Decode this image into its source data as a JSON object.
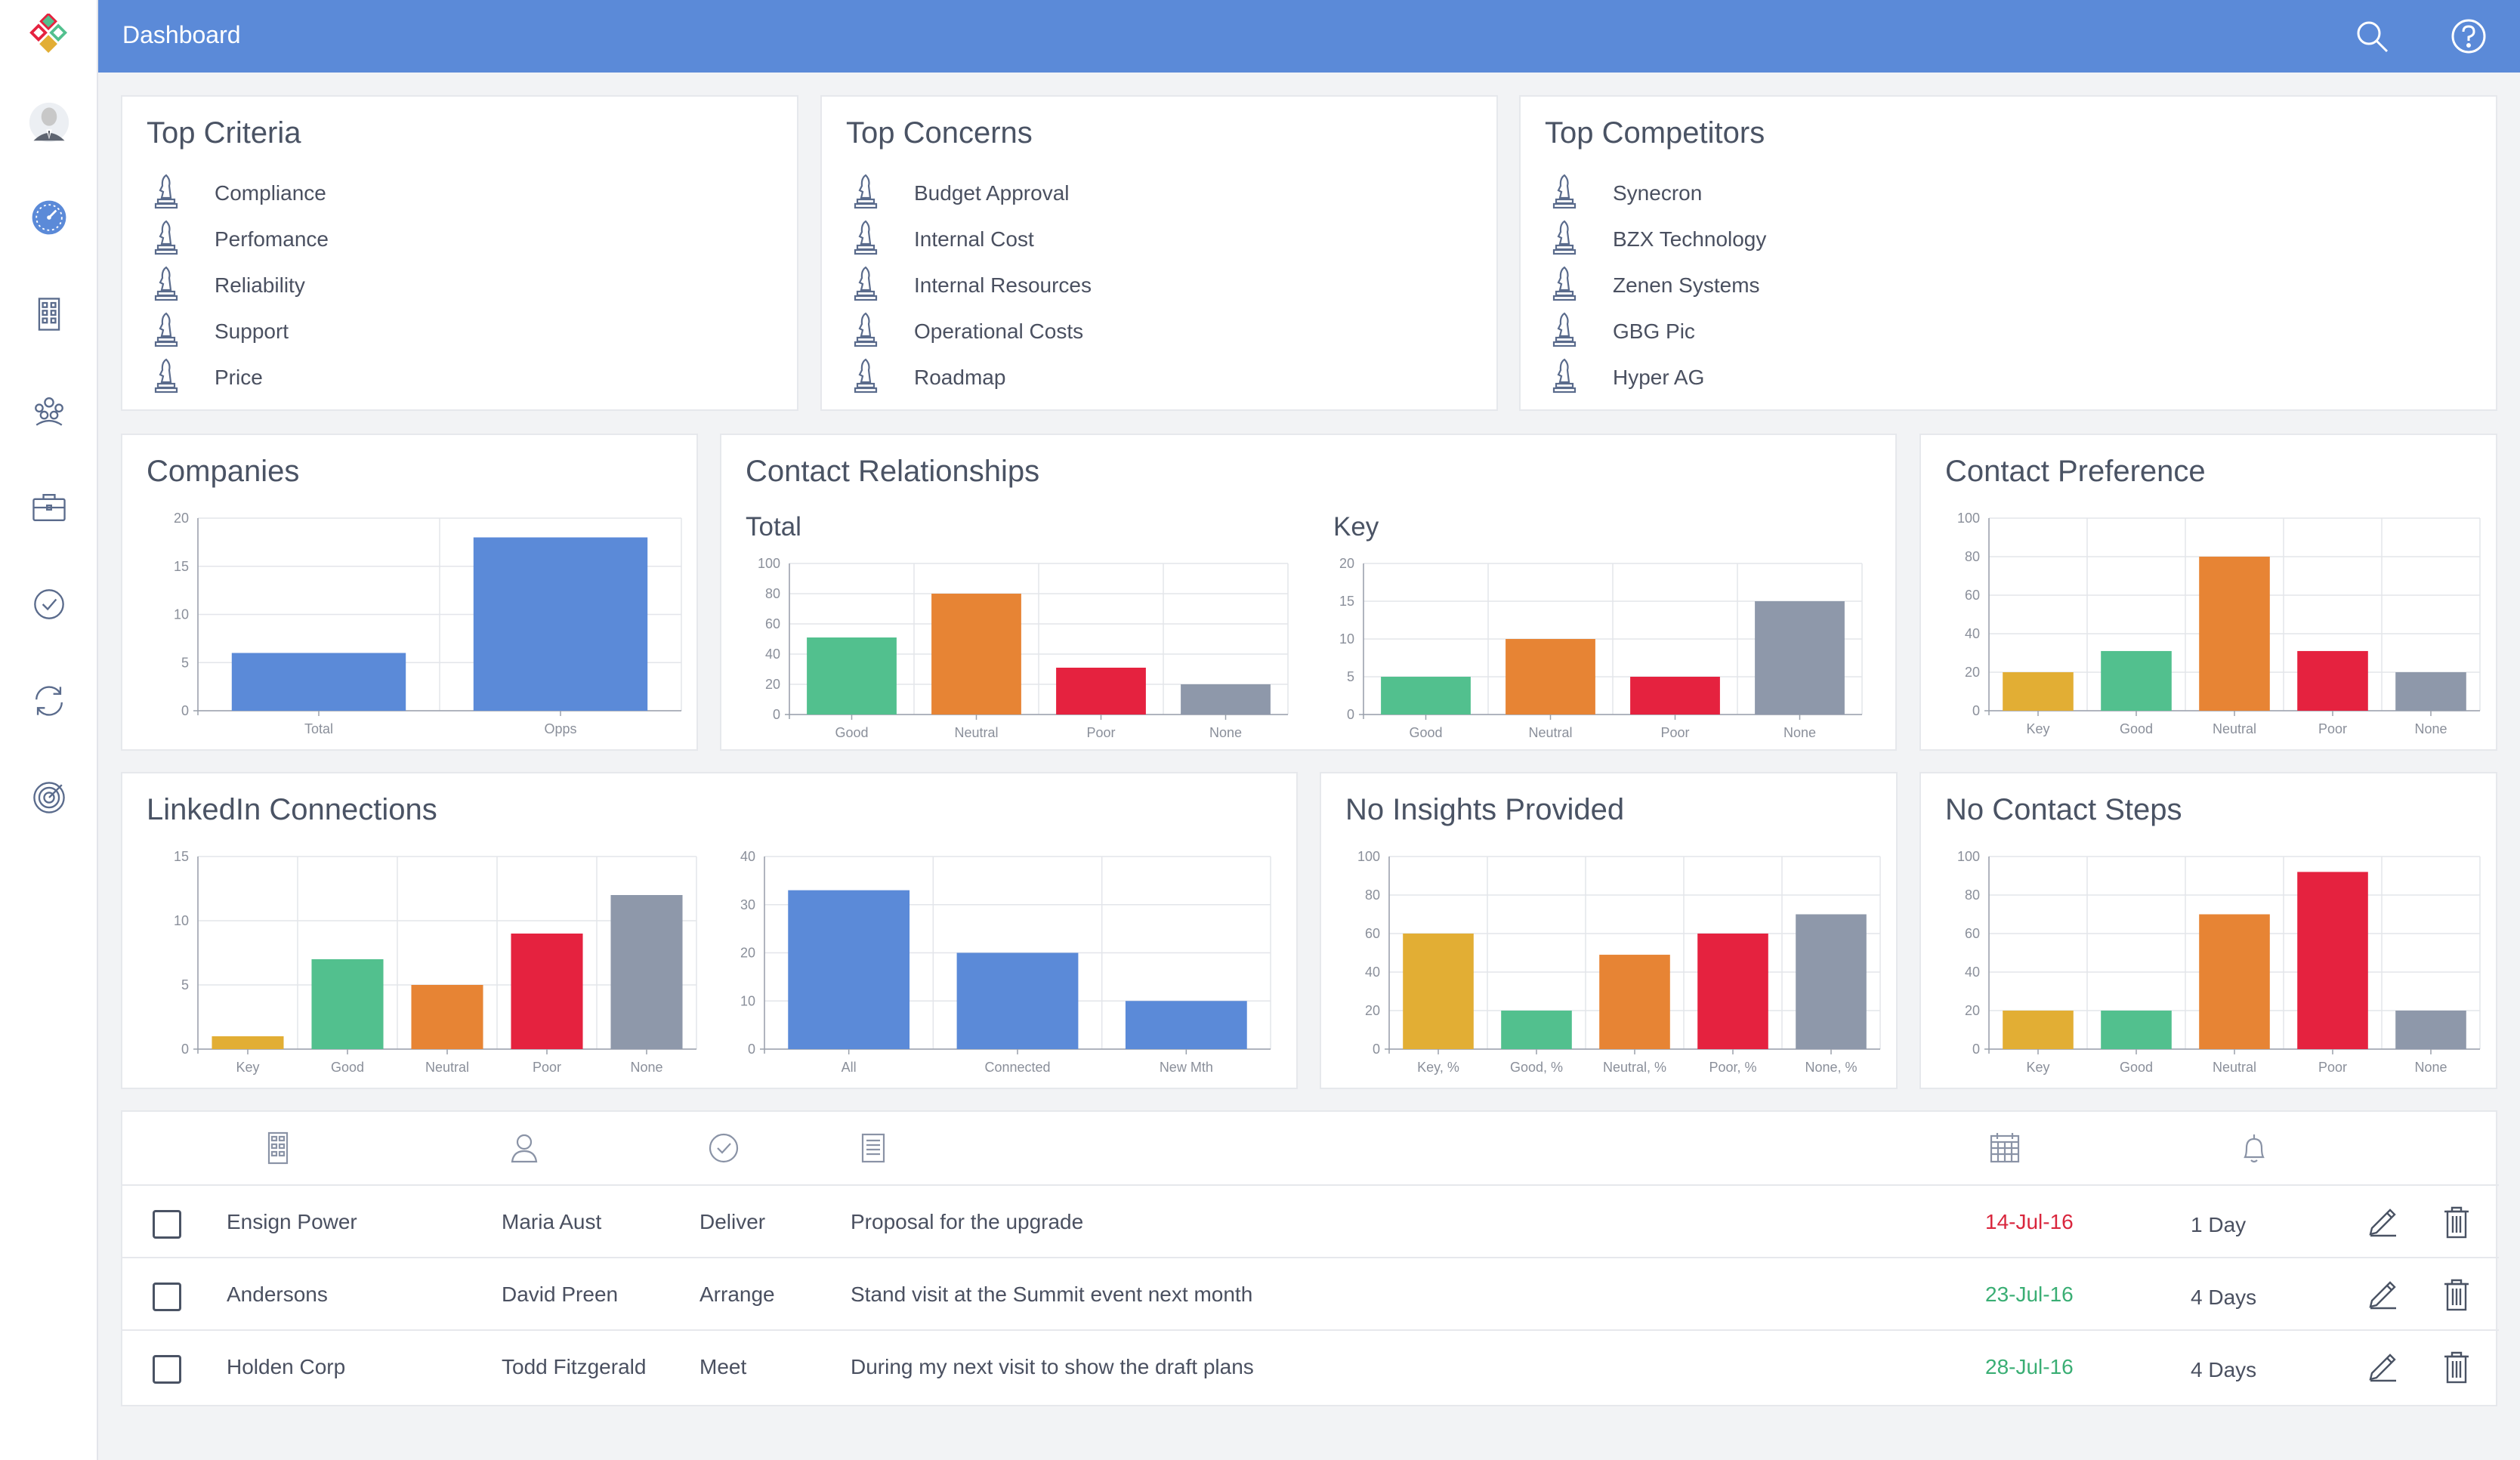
{
  "header": {
    "title": "Dashboard"
  },
  "icons": {
    "logo": "logo-icon",
    "avatar": "avatar",
    "dashboard": "gauge-icon",
    "companies": "building-icon",
    "contacts": "people-icon",
    "opportunities": "briefcase-icon",
    "tasks": "check-circle-icon",
    "sync": "sync-icon",
    "targets": "target-icon",
    "search": "search-icon",
    "help": "help-icon"
  },
  "colors": {
    "topbar": "#5b8ad8",
    "blue": "#5b8ad8",
    "green": "#52c08e",
    "orange": "#e78434",
    "red": "#e5223f",
    "gray": "#8e98aa",
    "yellow": "#e2ae34",
    "date_red": "#d9263d",
    "date_green": "#3aae74"
  },
  "top_criteria": {
    "title": "Top Criteria",
    "items": [
      "Compliance",
      "Perfomance",
      "Reliability",
      "Support",
      "Price"
    ]
  },
  "top_concerns": {
    "title": "Top Concerns",
    "items": [
      "Budget Approval",
      "Internal Cost",
      "Internal Resources",
      "Operational Costs",
      "Roadmap"
    ]
  },
  "top_competitors": {
    "title": "Top Competitors",
    "items": [
      "Synecron",
      "BZX Technology",
      "Zenen Systems",
      "GBG Pic",
      "Hyper AG"
    ]
  },
  "companies_card": {
    "title": "Companies"
  },
  "contact_relationships": {
    "title": "Contact Relationships",
    "total_label": "Total",
    "key_label": "Key"
  },
  "contact_preference": {
    "title": "Contact Preference"
  },
  "linkedin": {
    "title": "LinkedIn Connections"
  },
  "no_insights": {
    "title": "No Insights Provided"
  },
  "no_contact_steps": {
    "title": "No Contact Steps"
  },
  "chart_data": [
    {
      "id": "companies",
      "type": "bar",
      "categories": [
        "Total",
        "Opps"
      ],
      "values": [
        6,
        18
      ],
      "colors": [
        "#5b8ad8",
        "#5b8ad8"
      ],
      "ylim": [
        0,
        20
      ],
      "yticks": [
        0,
        5,
        10,
        15,
        20
      ]
    },
    {
      "id": "rel_total",
      "type": "bar",
      "categories": [
        "Good",
        "Neutral",
        "Poor",
        "None"
      ],
      "values": [
        51,
        80,
        31,
        20
      ],
      "colors": [
        "#52c08e",
        "#e78434",
        "#e5223f",
        "#8e98aa"
      ],
      "ylim": [
        0,
        100
      ],
      "yticks": [
        0,
        20,
        40,
        60,
        80,
        100
      ]
    },
    {
      "id": "rel_key",
      "type": "bar",
      "categories": [
        "Good",
        "Neutral",
        "Poor",
        "None"
      ],
      "values": [
        5,
        10,
        5,
        15
      ],
      "colors": [
        "#52c08e",
        "#e78434",
        "#e5223f",
        "#8e98aa"
      ],
      "ylim": [
        0,
        20
      ],
      "yticks": [
        0,
        5,
        10,
        15,
        20
      ]
    },
    {
      "id": "preference",
      "type": "bar",
      "categories": [
        "Key",
        "Good",
        "Neutral",
        "Poor",
        "None"
      ],
      "values": [
        20,
        31,
        80,
        31,
        20
      ],
      "colors": [
        "#e2ae34",
        "#52c08e",
        "#e78434",
        "#e5223f",
        "#8e98aa"
      ],
      "ylim": [
        0,
        100
      ],
      "yticks": [
        0,
        20,
        40,
        60,
        80,
        100
      ]
    },
    {
      "id": "linkedin_rel",
      "type": "bar",
      "categories": [
        "Key",
        "Good",
        "Neutral",
        "Poor",
        "None"
      ],
      "values": [
        1,
        7,
        5,
        9,
        12
      ],
      "colors": [
        "#e2ae34",
        "#52c08e",
        "#e78434",
        "#e5223f",
        "#8e98aa"
      ],
      "ylim": [
        0,
        15
      ],
      "yticks": [
        0,
        5,
        10,
        15
      ]
    },
    {
      "id": "linkedin_conn",
      "type": "bar",
      "categories": [
        "All",
        "Connected",
        "New Mth"
      ],
      "values": [
        33,
        20,
        10
      ],
      "colors": [
        "#5b8ad8",
        "#5b8ad8",
        "#5b8ad8"
      ],
      "ylim": [
        0,
        40
      ],
      "yticks": [
        0,
        10,
        20,
        30,
        40
      ]
    },
    {
      "id": "insights",
      "type": "bar",
      "categories": [
        "Key, %",
        "Good, %",
        "Neutral, %",
        "Poor, %",
        "None, %"
      ],
      "values": [
        60,
        20,
        49,
        60,
        70
      ],
      "colors": [
        "#e2ae34",
        "#52c08e",
        "#e78434",
        "#e5223f",
        "#8e98aa"
      ],
      "ylim": [
        0,
        100
      ],
      "yticks": [
        0,
        20,
        40,
        60,
        80,
        100
      ]
    },
    {
      "id": "steps",
      "type": "bar",
      "categories": [
        "Key",
        "Good",
        "Neutral",
        "Poor",
        "None"
      ],
      "values": [
        20,
        20,
        70,
        92,
        20
      ],
      "colors": [
        "#e2ae34",
        "#52c08e",
        "#e78434",
        "#e5223f",
        "#8e98aa"
      ],
      "ylim": [
        0,
        100
      ],
      "yticks": [
        0,
        20,
        40,
        60,
        80,
        100
      ]
    }
  ],
  "tasks": {
    "header_icons": [
      "building-icon",
      "person-icon",
      "check-circle-icon",
      "document-icon",
      "calendar-icon",
      "bell-icon"
    ],
    "rows": [
      {
        "company": "Ensign Power",
        "contact": "Maria Aust",
        "action": "Deliver",
        "description": "Proposal for the upgrade",
        "date": "14-Jul-16",
        "date_status": "overdue",
        "reminder": "1 Day"
      },
      {
        "company": "Andersons",
        "contact": "David Preen",
        "action": "Arrange",
        "description": "Stand visit at the Summit event next month",
        "date": "23-Jul-16",
        "date_status": "upcoming",
        "reminder": "4 Days"
      },
      {
        "company": "Holden Corp",
        "contact": "Todd Fitzgerald",
        "action": "Meet",
        "description": "During my next visit to show the draft plans",
        "date": "28-Jul-16",
        "date_status": "upcoming",
        "reminder": "4 Days"
      }
    ]
  }
}
